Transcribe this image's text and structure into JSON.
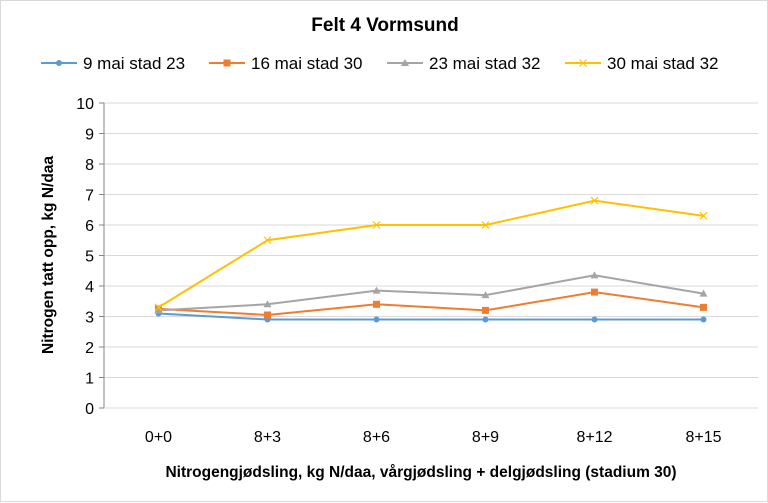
{
  "chart_data": {
    "type": "line",
    "title": "Felt 4 Vormsund",
    "xlabel": "Nitrogengjødsling, kg N/daa, vårgjødsling + delgjødsling (stadium 30)",
    "ylabel": "Nitrogen tatt opp, kg N/daa",
    "categories": [
      "0+0",
      "8+3",
      "8+6",
      "8+9",
      "8+12",
      "8+15"
    ],
    "ylim": [
      0,
      10
    ],
    "yticks": [
      "0",
      "1",
      "2",
      "3",
      "4",
      "5",
      "6",
      "7",
      "8",
      "9",
      "10"
    ],
    "grid": true,
    "legend": "top",
    "series": [
      {
        "name": "9 mai stad 23",
        "color": "#5b9bd5",
        "marker": "circle",
        "values": [
          3.1,
          2.9,
          2.9,
          2.9,
          2.9,
          2.9
        ]
      },
      {
        "name": "16 mai stad 30",
        "color": "#ed7d31",
        "marker": "square",
        "values": [
          3.25,
          3.05,
          3.4,
          3.2,
          3.8,
          3.3
        ]
      },
      {
        "name": "23 mai stad 32",
        "color": "#a5a5a5",
        "marker": "triangle",
        "values": [
          3.2,
          3.4,
          3.85,
          3.7,
          4.35,
          3.75
        ]
      },
      {
        "name": "30 mai stad 32",
        "color": "#ffc000",
        "marker": "x",
        "values": [
          3.3,
          5.5,
          6.0,
          6.0,
          6.8,
          6.3
        ]
      }
    ]
  }
}
